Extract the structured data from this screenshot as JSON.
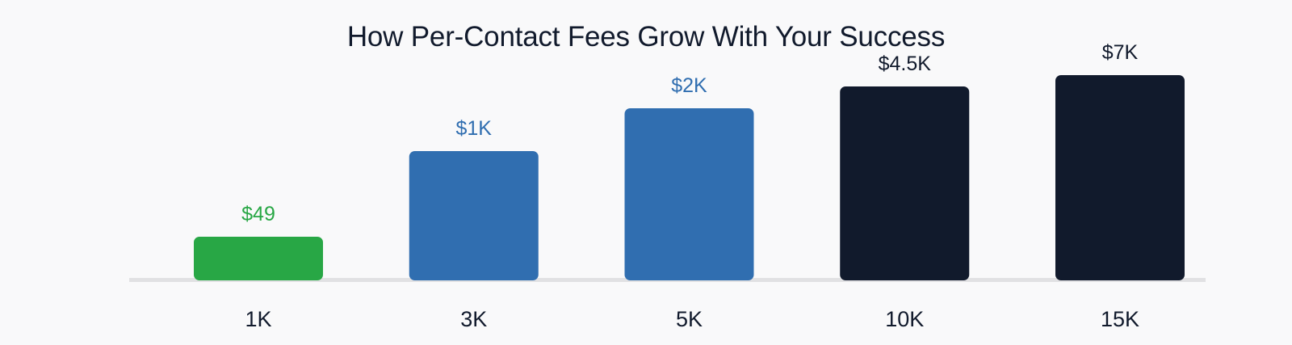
{
  "chart_data": {
    "type": "bar",
    "title": "How Per-Contact Fees Grow With Your Success",
    "xlabel": "",
    "ylabel": "",
    "grid": false,
    "categories": [
      "1K",
      "3K",
      "5K",
      "10K",
      "15K"
    ],
    "values": [
      49,
      1000,
      2000,
      4500,
      7000
    ],
    "value_labels": [
      "$49",
      "$1K",
      "$2K",
      "$4.5K",
      "$7K"
    ],
    "colors": [
      "#28a745",
      "#306eb0",
      "#306eb0",
      "#111a2c",
      "#111a2c"
    ],
    "label_colors": [
      "#28a745",
      "#306eb0",
      "#306eb0",
      "#111a2c",
      "#111a2c"
    ]
  }
}
